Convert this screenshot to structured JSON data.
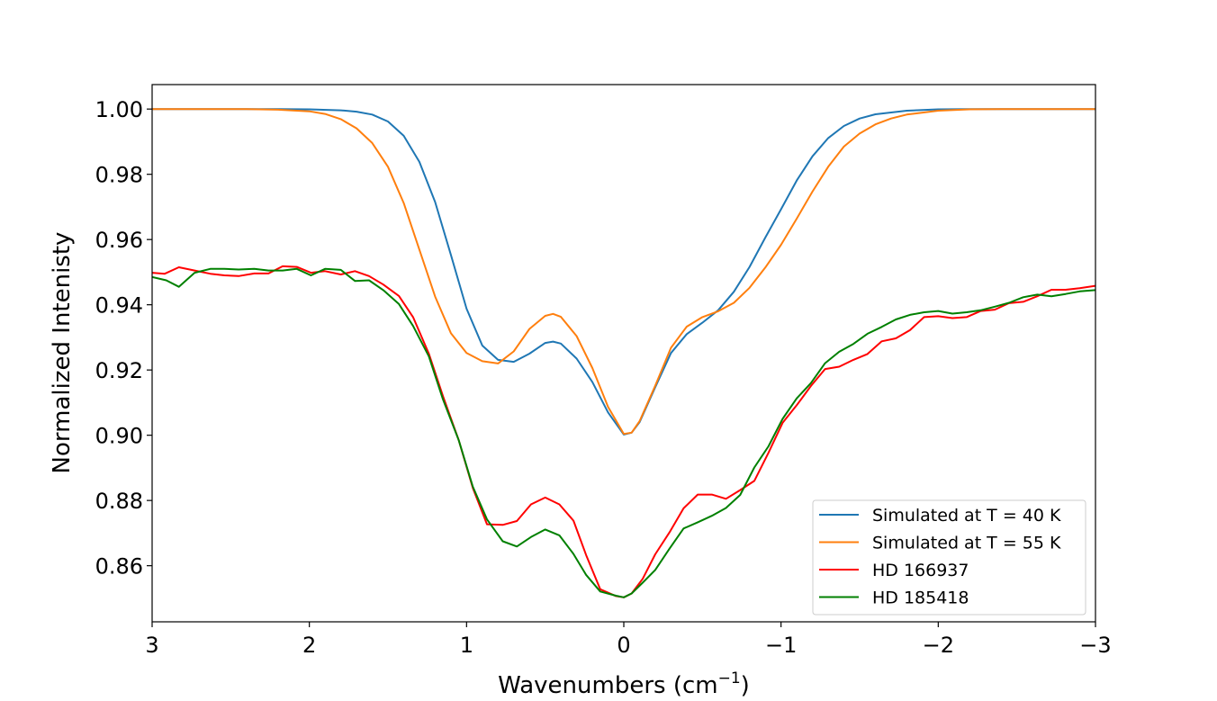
{
  "chart_data": {
    "type": "line",
    "xlabel": "Wavenumbers (cm",
    "xlabel_sup": "−1",
    "xlabel_close": ")",
    "ylabel": "Normalized Intenisty",
    "xlim": [
      3,
      -3
    ],
    "ylim": [
      0.8428,
      1.0075
    ],
    "x_ticks": [
      3,
      2,
      1,
      0,
      -1,
      -2,
      -3
    ],
    "x_tick_labels": [
      "3",
      "2",
      "1",
      "0",
      "−1",
      "−2",
      "−3"
    ],
    "y_ticks": [
      0.86,
      0.88,
      0.9,
      0.92,
      0.94,
      0.96,
      0.98,
      1.0
    ],
    "y_tick_labels": [
      "0.86",
      "0.88",
      "0.90",
      "0.92",
      "0.94",
      "0.96",
      "0.98",
      "1.00"
    ],
    "grid": false,
    "legend_position": "lower-right",
    "series": [
      {
        "name": "Simulated at T = 40 K",
        "color": "#1f77b4",
        "points": [
          [
            3.0,
            1.0
          ],
          [
            2.2,
            1.0
          ],
          [
            2.0,
            0.9999
          ],
          [
            1.8,
            0.9996
          ],
          [
            1.7,
            0.9992
          ],
          [
            1.6,
            0.9983
          ],
          [
            1.5,
            0.9962
          ],
          [
            1.4,
            0.9918
          ],
          [
            1.3,
            0.9838
          ],
          [
            1.2,
            0.9715
          ],
          [
            1.1,
            0.9553
          ],
          [
            1.0,
            0.9388
          ],
          [
            0.9,
            0.9275
          ],
          [
            0.8,
            0.9231
          ],
          [
            0.7,
            0.9225
          ],
          [
            0.6,
            0.925
          ],
          [
            0.5,
            0.9283
          ],
          [
            0.45,
            0.9287
          ],
          [
            0.4,
            0.9281
          ],
          [
            0.3,
            0.9235
          ],
          [
            0.2,
            0.9163
          ],
          [
            0.1,
            0.907
          ],
          [
            0.0,
            0.9002
          ],
          [
            -0.05,
            0.9008
          ],
          [
            -0.1,
            0.904
          ],
          [
            -0.2,
            0.9147
          ],
          [
            -0.3,
            0.9252
          ],
          [
            -0.4,
            0.931
          ],
          [
            -0.5,
            0.9345
          ],
          [
            -0.6,
            0.9383
          ],
          [
            -0.7,
            0.944
          ],
          [
            -0.8,
            0.9516
          ],
          [
            -0.9,
            0.9606
          ],
          [
            -1.0,
            0.9693
          ],
          [
            -1.1,
            0.9781
          ],
          [
            -1.2,
            0.9855
          ],
          [
            -1.3,
            0.9911
          ],
          [
            -1.4,
            0.9948
          ],
          [
            -1.5,
            0.9971
          ],
          [
            -1.6,
            0.9984
          ],
          [
            -1.8,
            0.9995
          ],
          [
            -2.0,
            0.9999
          ],
          [
            -2.2,
            1.0
          ],
          [
            -3.0,
            1.0
          ]
        ]
      },
      {
        "name": "Simulated at T = 55 K",
        "color": "#ff7f0e",
        "points": [
          [
            3.0,
            1.0
          ],
          [
            2.4,
            1.0
          ],
          [
            2.2,
            0.9998
          ],
          [
            2.0,
            0.9993
          ],
          [
            1.9,
            0.9985
          ],
          [
            1.8,
            0.9969
          ],
          [
            1.7,
            0.9941
          ],
          [
            1.6,
            0.9896
          ],
          [
            1.5,
            0.9823
          ],
          [
            1.4,
            0.9712
          ],
          [
            1.3,
            0.9569
          ],
          [
            1.2,
            0.9425
          ],
          [
            1.1,
            0.9313
          ],
          [
            1.0,
            0.9252
          ],
          [
            0.9,
            0.9227
          ],
          [
            0.8,
            0.922
          ],
          [
            0.7,
            0.9257
          ],
          [
            0.6,
            0.9326
          ],
          [
            0.5,
            0.9366
          ],
          [
            0.45,
            0.9372
          ],
          [
            0.4,
            0.9363
          ],
          [
            0.3,
            0.9304
          ],
          [
            0.2,
            0.9206
          ],
          [
            0.1,
            0.9087
          ],
          [
            0.0,
            0.9004
          ],
          [
            -0.05,
            0.9008
          ],
          [
            -0.1,
            0.9043
          ],
          [
            -0.2,
            0.9152
          ],
          [
            -0.3,
            0.9268
          ],
          [
            -0.4,
            0.9333
          ],
          [
            -0.5,
            0.9362
          ],
          [
            -0.6,
            0.938
          ],
          [
            -0.7,
            0.9406
          ],
          [
            -0.8,
            0.9452
          ],
          [
            -0.9,
            0.9514
          ],
          [
            -1.0,
            0.9584
          ],
          [
            -1.1,
            0.9664
          ],
          [
            -1.2,
            0.9747
          ],
          [
            -1.3,
            0.9823
          ],
          [
            -1.4,
            0.9885
          ],
          [
            -1.5,
            0.9925
          ],
          [
            -1.6,
            0.9953
          ],
          [
            -1.7,
            0.9971
          ],
          [
            -1.8,
            0.9983
          ],
          [
            -2.0,
            0.9995
          ],
          [
            -2.2,
            0.9999
          ],
          [
            -2.4,
            1.0
          ],
          [
            -3.0,
            1.0
          ]
        ]
      },
      {
        "name": "HD 166937",
        "color": "#ff0000",
        "points": [
          [
            3.0,
            0.9498
          ],
          [
            2.92,
            0.9495
          ],
          [
            2.83,
            0.9515
          ],
          [
            2.73,
            0.9505
          ],
          [
            2.63,
            0.9495
          ],
          [
            2.54,
            0.949
          ],
          [
            2.45,
            0.9488
          ],
          [
            2.35,
            0.9496
          ],
          [
            2.26,
            0.9496
          ],
          [
            2.17,
            0.9518
          ],
          [
            2.08,
            0.9516
          ],
          [
            1.99,
            0.9498
          ],
          [
            1.9,
            0.9503
          ],
          [
            1.8,
            0.9493
          ],
          [
            1.71,
            0.9503
          ],
          [
            1.62,
            0.9488
          ],
          [
            1.53,
            0.9462
          ],
          [
            1.43,
            0.9427
          ],
          [
            1.34,
            0.9362
          ],
          [
            1.24,
            0.925
          ],
          [
            1.15,
            0.912
          ],
          [
            1.05,
            0.8985
          ],
          [
            0.96,
            0.8838
          ],
          [
            0.87,
            0.8727
          ],
          [
            0.77,
            0.8725
          ],
          [
            0.68,
            0.8737
          ],
          [
            0.59,
            0.8788
          ],
          [
            0.5,
            0.8809
          ],
          [
            0.41,
            0.8788
          ],
          [
            0.32,
            0.8738
          ],
          [
            0.24,
            0.8633
          ],
          [
            0.15,
            0.8528
          ],
          [
            0.05,
            0.8507
          ],
          [
            0.0,
            0.8503
          ],
          [
            -0.05,
            0.8515
          ],
          [
            -0.12,
            0.856
          ],
          [
            -0.2,
            0.8635
          ],
          [
            -0.29,
            0.8702
          ],
          [
            -0.38,
            0.8776
          ],
          [
            -0.47,
            0.8818
          ],
          [
            -0.56,
            0.8818
          ],
          [
            -0.65,
            0.8805
          ],
          [
            -0.74,
            0.8832
          ],
          [
            -0.83,
            0.886
          ],
          [
            -0.92,
            0.8946
          ],
          [
            -1.01,
            0.9038
          ],
          [
            -1.1,
            0.9092
          ],
          [
            -1.19,
            0.9151
          ],
          [
            -1.28,
            0.9203
          ],
          [
            -1.37,
            0.921
          ],
          [
            -1.46,
            0.9231
          ],
          [
            -1.55,
            0.9249
          ],
          [
            -1.64,
            0.9288
          ],
          [
            -1.73,
            0.9297
          ],
          [
            -1.82,
            0.9322
          ],
          [
            -1.91,
            0.9362
          ],
          [
            -2.0,
            0.9365
          ],
          [
            -2.09,
            0.9359
          ],
          [
            -2.18,
            0.9362
          ],
          [
            -2.27,
            0.9381
          ],
          [
            -2.36,
            0.9385
          ],
          [
            -2.45,
            0.9405
          ],
          [
            -2.54,
            0.9409
          ],
          [
            -2.63,
            0.9426
          ],
          [
            -2.72,
            0.9446
          ],
          [
            -2.81,
            0.9446
          ],
          [
            -2.9,
            0.9451
          ],
          [
            -3.0,
            0.9458
          ]
        ]
      },
      {
        "name": "HD 185418",
        "color": "#008000",
        "points": [
          [
            3.0,
            0.9485
          ],
          [
            2.91,
            0.9475
          ],
          [
            2.83,
            0.9455
          ],
          [
            2.73,
            0.9498
          ],
          [
            2.63,
            0.951
          ],
          [
            2.54,
            0.951
          ],
          [
            2.45,
            0.9508
          ],
          [
            2.35,
            0.951
          ],
          [
            2.26,
            0.9505
          ],
          [
            2.17,
            0.9505
          ],
          [
            2.08,
            0.951
          ],
          [
            1.99,
            0.949
          ],
          [
            1.9,
            0.951
          ],
          [
            1.8,
            0.9507
          ],
          [
            1.71,
            0.9473
          ],
          [
            1.62,
            0.9475
          ],
          [
            1.53,
            0.9445
          ],
          [
            1.43,
            0.9402
          ],
          [
            1.34,
            0.9335
          ],
          [
            1.24,
            0.9242
          ],
          [
            1.15,
            0.911
          ],
          [
            1.05,
            0.8985
          ],
          [
            0.96,
            0.8842
          ],
          [
            0.87,
            0.8742
          ],
          [
            0.77,
            0.8675
          ],
          [
            0.68,
            0.8659
          ],
          [
            0.59,
            0.8688
          ],
          [
            0.5,
            0.8711
          ],
          [
            0.41,
            0.8693
          ],
          [
            0.32,
            0.8636
          ],
          [
            0.24,
            0.8572
          ],
          [
            0.15,
            0.8521
          ],
          [
            0.05,
            0.8508
          ],
          [
            0.0,
            0.8503
          ],
          [
            -0.05,
            0.8515
          ],
          [
            -0.12,
            0.8548
          ],
          [
            -0.2,
            0.8587
          ],
          [
            -0.29,
            0.8652
          ],
          [
            -0.38,
            0.8714
          ],
          [
            -0.47,
            0.8733
          ],
          [
            -0.56,
            0.8753
          ],
          [
            -0.65,
            0.8777
          ],
          [
            -0.74,
            0.8817
          ],
          [
            -0.83,
            0.8901
          ],
          [
            -0.92,
            0.8966
          ],
          [
            -1.01,
            0.905
          ],
          [
            -1.1,
            0.9113
          ],
          [
            -1.19,
            0.916
          ],
          [
            -1.28,
            0.9221
          ],
          [
            -1.37,
            0.9256
          ],
          [
            -1.46,
            0.928
          ],
          [
            -1.55,
            0.9311
          ],
          [
            -1.64,
            0.9332
          ],
          [
            -1.73,
            0.9355
          ],
          [
            -1.82,
            0.9369
          ],
          [
            -1.91,
            0.9377
          ],
          [
            -2.0,
            0.9381
          ],
          [
            -2.09,
            0.9373
          ],
          [
            -2.18,
            0.9377
          ],
          [
            -2.27,
            0.9383
          ],
          [
            -2.36,
            0.9394
          ],
          [
            -2.45,
            0.9406
          ],
          [
            -2.54,
            0.9423
          ],
          [
            -2.63,
            0.9431
          ],
          [
            -2.72,
            0.9426
          ],
          [
            -2.81,
            0.9433
          ],
          [
            -2.9,
            0.9441
          ],
          [
            -3.0,
            0.9445
          ]
        ]
      }
    ]
  }
}
